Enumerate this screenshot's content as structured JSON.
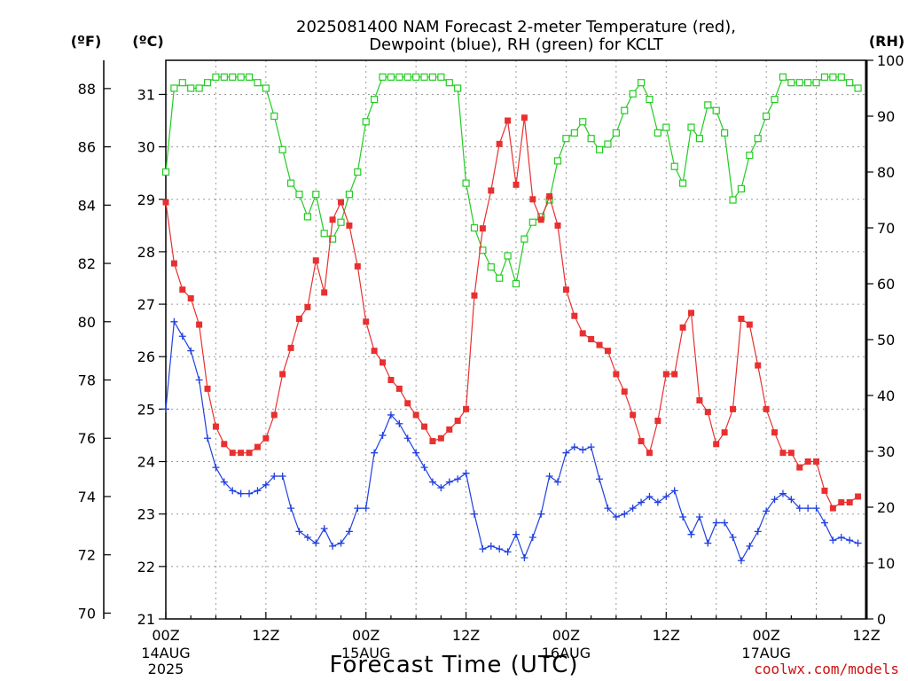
{
  "chart_data": {
    "type": "line",
    "title_line1": "2025081400 NAM Forecast 2-meter Temperature (red),",
    "title_line2": "Dewpoint (blue), RH (green) for KCLT",
    "xlabel": "Forecast Time (UTC)",
    "credit": "coolwx.com/models",
    "unit_f": "(ºF)",
    "unit_c": "(ºC)",
    "unit_rh": "(RH)",
    "x_range_hours": [
      0,
      84
    ],
    "x_ticks": [
      {
        "h": 0,
        "label": "00Z",
        "sub1": "14AUG",
        "sub2": "2025"
      },
      {
        "h": 12,
        "label": "12Z",
        "sub1": "",
        "sub2": ""
      },
      {
        "h": 24,
        "label": "00Z",
        "sub1": "15AUG",
        "sub2": ""
      },
      {
        "h": 36,
        "label": "12Z",
        "sub1": "",
        "sub2": ""
      },
      {
        "h": 48,
        "label": "00Z",
        "sub1": "16AUG",
        "sub2": ""
      },
      {
        "h": 60,
        "label": "12Z",
        "sub1": "",
        "sub2": ""
      },
      {
        "h": 72,
        "label": "00Z",
        "sub1": "17AUG",
        "sub2": ""
      },
      {
        "h": 84,
        "label": "12Z",
        "sub1": "",
        "sub2": ""
      }
    ],
    "c_range": [
      21,
      31.65
    ],
    "c_ticks": [
      "21",
      "22",
      "23",
      "24",
      "25",
      "26",
      "27",
      "28",
      "29",
      "30",
      "31"
    ],
    "f_ticks": [
      "70",
      "72",
      "74",
      "76",
      "78",
      "80",
      "82",
      "84",
      "86",
      "88"
    ],
    "rh_range": [
      0,
      100
    ],
    "rh_ticks": [
      "0",
      "10",
      "20",
      "30",
      "40",
      "50",
      "60",
      "70",
      "80",
      "90",
      "100"
    ],
    "grid": true,
    "series": [
      {
        "name": "Temperature",
        "color": "#e83030",
        "marker": "filled-square",
        "axis": "F",
        "values": [
          84.1,
          82.0,
          81.1,
          80.8,
          79.9,
          77.7,
          76.4,
          75.8,
          75.5,
          75.5,
          75.5,
          75.7,
          76.0,
          76.8,
          78.2,
          79.1,
          80.1,
          80.5,
          82.1,
          81.0,
          83.5,
          84.1,
          83.3,
          81.9,
          80.0,
          79.0,
          78.6,
          78.0,
          77.7,
          77.2,
          76.8,
          76.4,
          75.9,
          76.0,
          76.3,
          76.6,
          77.0,
          80.9,
          83.2,
          84.5,
          86.1,
          86.9,
          84.7,
          87.0,
          84.2,
          83.5,
          84.3,
          83.3,
          81.1,
          80.2,
          79.6,
          79.4,
          79.2,
          79.0,
          78.2,
          77.6,
          76.8,
          75.9,
          75.5,
          76.6,
          78.2,
          78.2,
          79.8,
          80.3,
          77.3,
          76.9,
          75.8,
          76.2,
          77.0,
          80.1,
          79.9,
          78.5,
          77.0,
          76.2,
          75.5,
          75.5,
          75.0,
          75.2,
          75.2,
          74.2,
          73.6,
          73.8,
          73.8,
          74.0
        ]
      },
      {
        "name": "Dewpoint",
        "color": "#2040e0",
        "marker": "plus",
        "axis": "F",
        "values": [
          77.0,
          80.0,
          79.5,
          79.0,
          78.0,
          76.0,
          75.0,
          74.5,
          74.2,
          74.1,
          74.1,
          74.2,
          74.4,
          74.7,
          74.7,
          73.6,
          72.8,
          72.6,
          72.4,
          72.9,
          72.3,
          72.4,
          72.8,
          73.6,
          73.6,
          75.5,
          76.1,
          76.8,
          76.5,
          76.0,
          75.5,
          75.0,
          74.5,
          74.3,
          74.5,
          74.6,
          74.8,
          73.4,
          72.2,
          72.3,
          72.2,
          72.1,
          72.7,
          71.9,
          72.6,
          73.4,
          74.7,
          74.5,
          75.5,
          75.7,
          75.6,
          75.7,
          74.6,
          73.6,
          73.3,
          73.4,
          73.6,
          73.8,
          74.0,
          73.8,
          74.0,
          74.2,
          73.3,
          72.7,
          73.3,
          72.4,
          73.1,
          73.1,
          72.6,
          71.8,
          72.3,
          72.8,
          73.5,
          73.9,
          74.1,
          73.9,
          73.6,
          73.6,
          73.6,
          73.1,
          72.5,
          72.6,
          72.5,
          72.4
        ]
      },
      {
        "name": "RH",
        "color": "#22cc22",
        "marker": "open-square",
        "axis": "RH",
        "values": [
          80,
          95,
          96,
          95,
          95,
          96,
          97,
          97,
          97,
          97,
          97,
          96,
          95,
          90,
          84,
          78,
          76,
          72,
          76,
          69,
          68,
          71,
          76,
          80,
          89,
          93,
          97,
          97,
          97,
          97,
          97,
          97,
          97,
          97,
          96,
          95,
          78,
          70,
          66,
          63,
          61,
          65,
          60,
          68,
          71,
          72,
          75,
          82,
          86,
          87,
          89,
          86,
          84,
          85,
          87,
          91,
          94,
          96,
          93,
          87,
          88,
          81,
          78,
          88,
          86,
          92,
          91,
          87,
          75,
          77,
          83,
          86,
          90,
          93,
          97,
          96,
          96,
          96,
          96,
          97,
          97,
          97,
          96,
          95
        ]
      }
    ]
  }
}
